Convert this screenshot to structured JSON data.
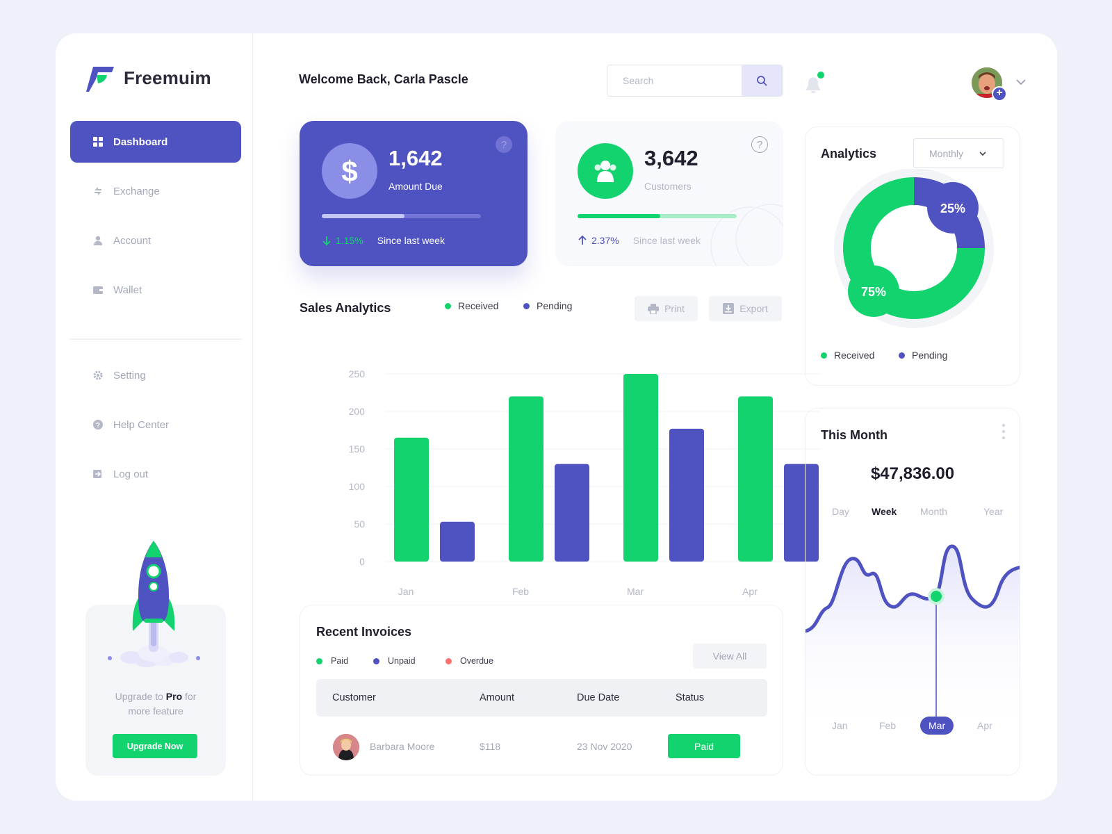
{
  "brand": {
    "name": "Freemuim"
  },
  "sidebar": {
    "items": [
      {
        "label": "Dashboard",
        "icon": "grid-icon"
      },
      {
        "label": "Exchange",
        "icon": "exchange-icon"
      },
      {
        "label": "Account",
        "icon": "user-icon"
      },
      {
        "label": "Wallet",
        "icon": "wallet-icon"
      },
      {
        "label": "Setting",
        "icon": "gear-icon"
      },
      {
        "label": "Help Center",
        "icon": "help-icon"
      },
      {
        "label": "Log out",
        "icon": "logout-icon"
      }
    ],
    "upgrade": {
      "text_before": "Upgrade to",
      "text_bold": "Pro",
      "text_after": "for",
      "text_line2": "more feature",
      "button": "Upgrade Now"
    }
  },
  "header": {
    "welcome": "Welcome Back, Carla Pascle",
    "search_placeholder": "Search"
  },
  "stats": [
    {
      "value": "1,642",
      "label": "Amount Due",
      "change": "1.15%",
      "direction": "down",
      "since": "Since last week",
      "progress": 0.52
    },
    {
      "value": "3,642",
      "label": "Customers",
      "change": "2.37%",
      "direction": "up",
      "since": "Since last week",
      "progress": 0.52
    }
  ],
  "sales": {
    "title": "Sales Analytics",
    "legend": [
      "Received",
      "Pending"
    ],
    "print_label": "Print",
    "export_label": "Export"
  },
  "chart_data": [
    {
      "type": "bar",
      "title": "Sales Analytics",
      "categories": [
        "Jan",
        "Feb",
        "Mar",
        "Apr"
      ],
      "series": [
        {
          "name": "Received",
          "values": [
            165,
            220,
            250,
            220
          ],
          "color": "#13d36f"
        },
        {
          "name": "Pending",
          "values": [
            53,
            130,
            177,
            130
          ],
          "color": "#4f52c1"
        }
      ],
      "yticks": [
        0,
        50,
        100,
        150,
        200,
        250
      ],
      "ylim": [
        0,
        250
      ],
      "grid": true,
      "legend_position": "top"
    },
    {
      "type": "pie",
      "title": "Analytics",
      "categories": [
        "Received",
        "Pending"
      ],
      "values": [
        75,
        25
      ],
      "labels": [
        "75%",
        "25%"
      ],
      "colors": [
        "#13d36f",
        "#4f52c1"
      ]
    },
    {
      "type": "area",
      "title": "This Month",
      "categories": [
        "Jan",
        "Feb",
        "Mar",
        "Apr"
      ],
      "highlighted": "Mar"
    }
  ],
  "invoices": {
    "title": "Recent Invoices",
    "legend": [
      "Paid",
      "Unpaid",
      "Overdue"
    ],
    "legend_colors": [
      "#13d36f",
      "#4f52c1",
      "#ff7070"
    ],
    "view_all": "View All",
    "columns": [
      "Customer",
      "Amount",
      "Due Date",
      "Status"
    ],
    "rows": [
      {
        "customer": "Barbara Moore",
        "amount": "$118",
        "due": "23 Nov 2020",
        "status": "Paid"
      }
    ]
  },
  "analytics": {
    "title": "Analytics",
    "period": "Monthly",
    "legend": [
      "Received",
      "Pending"
    ]
  },
  "this_month": {
    "title": "This Month",
    "amount": "$47,836.00",
    "tabs": [
      "Day",
      "Week",
      "Month",
      "Year"
    ],
    "active_tab": "Week",
    "months": [
      "Jan",
      "Feb",
      "Mar",
      "Apr"
    ],
    "active_month": "Mar"
  }
}
